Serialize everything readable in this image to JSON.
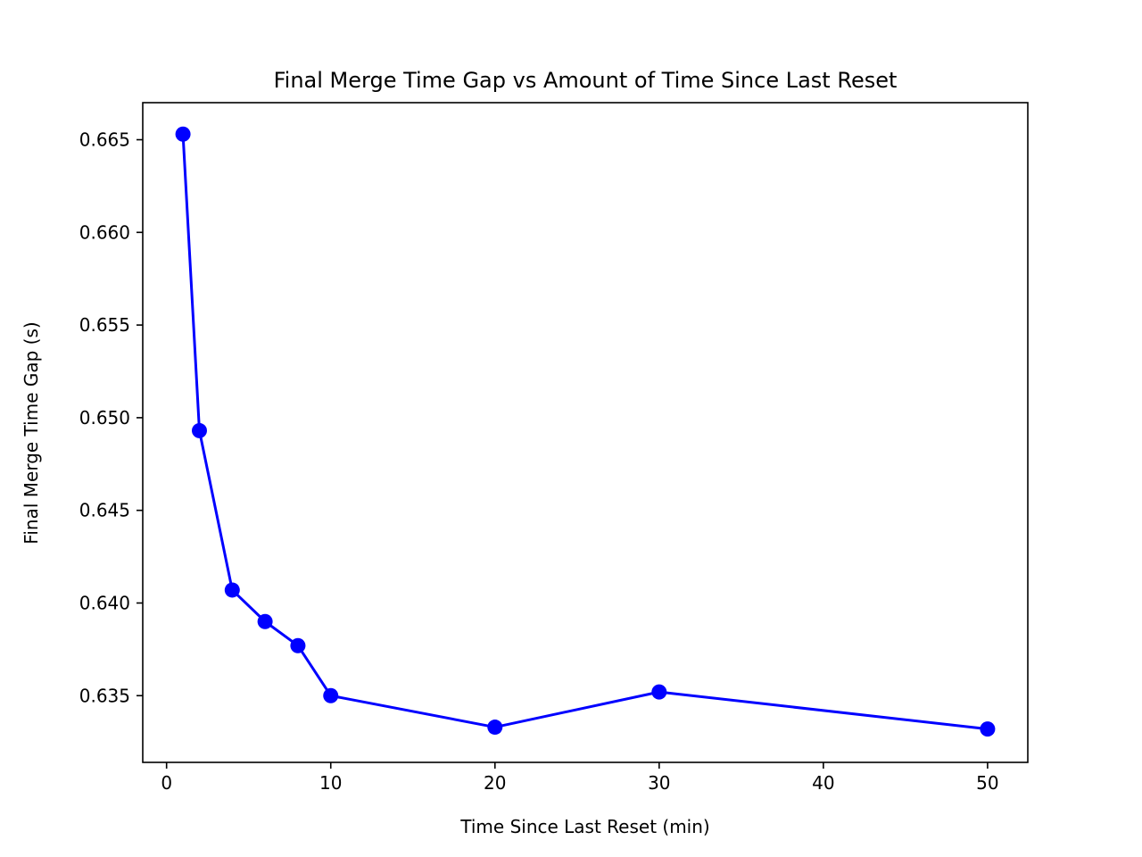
{
  "chart_data": {
    "type": "line",
    "title": "Final Merge Time Gap vs Amount of Time Since Last Reset",
    "xlabel": "Time Since Last Reset (min)",
    "ylabel": "Final Merge Time Gap (s)",
    "xlim": [
      -1.45,
      52.45
    ],
    "ylim": [
      0.6314,
      0.667
    ],
    "xticks": [
      0,
      10,
      20,
      30,
      40,
      50
    ],
    "xtick_labels": [
      "0",
      "10",
      "20",
      "30",
      "40",
      "50"
    ],
    "yticks": [
      0.635,
      0.64,
      0.645,
      0.65,
      0.655,
      0.66,
      0.665
    ],
    "ytick_labels": [
      "0.635",
      "0.640",
      "0.645",
      "0.650",
      "0.655",
      "0.660",
      "0.665"
    ],
    "grid": false,
    "series": [
      {
        "color": "#0000ff",
        "marker": "circle",
        "x": [
          1,
          2,
          4,
          6,
          8,
          10,
          20,
          30,
          50
        ],
        "y": [
          0.6653,
          0.6493,
          0.6407,
          0.639,
          0.6377,
          0.635,
          0.6333,
          0.6352,
          0.6332
        ]
      }
    ]
  }
}
